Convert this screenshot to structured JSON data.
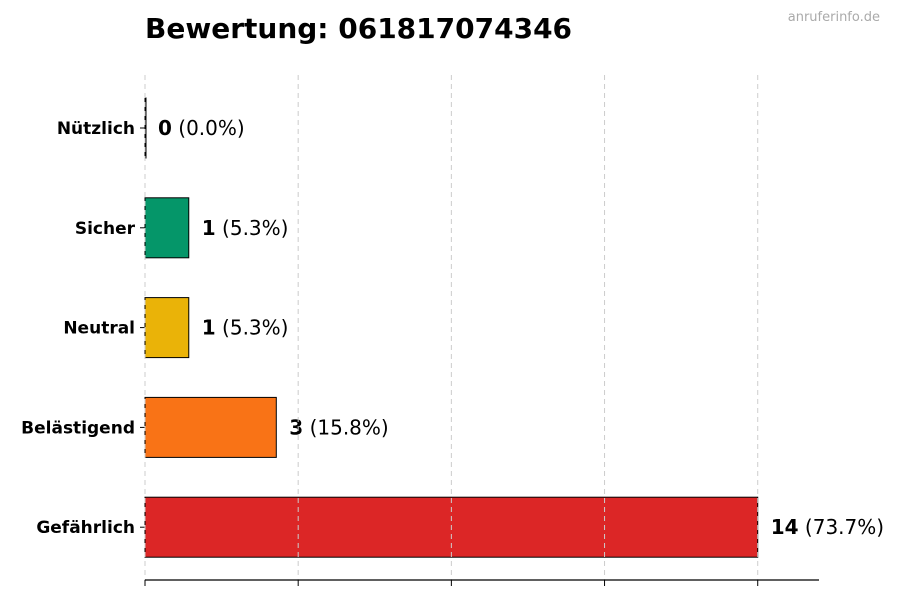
{
  "title": "Bewertung: 061817074346",
  "watermark": "anruferinfo.de",
  "chart_data": {
    "type": "bar",
    "orientation": "horizontal",
    "title": "Bewertung: 061817074346",
    "categories": [
      "Nützlich",
      "Sicher",
      "Neutral",
      "Belästigend",
      "Gefährlich"
    ],
    "values": [
      0,
      1,
      1,
      3,
      14
    ],
    "labels": [
      "(0.0%)",
      "(5.3%)",
      "(5.3%)",
      "(15.8%)",
      "(73.7%)"
    ],
    "colors": [
      "#555555",
      "#059669",
      "#eab308",
      "#f97316",
      "#dc2626"
    ],
    "xlim": [
      0,
      15.4
    ],
    "xticks": [
      0,
      3.5,
      7,
      10.5,
      14
    ],
    "grid": "x-dashed",
    "xlabel": "",
    "ylabel": ""
  }
}
